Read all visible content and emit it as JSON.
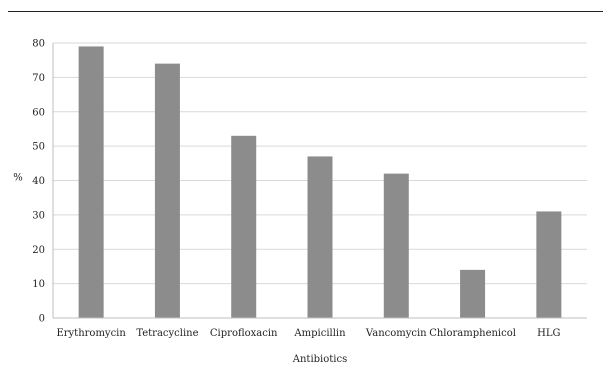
{
  "chart_data": {
    "type": "bar",
    "title": "",
    "xlabel": "Antibiotics",
    "ylabel": "%",
    "ylim": [
      0,
      80
    ],
    "yticks": [
      0,
      10,
      20,
      30,
      40,
      50,
      60,
      70,
      80
    ],
    "grid": true,
    "categories": [
      "Erythromycin",
      "Tetracycline",
      "Ciprofloxacin",
      "Ampicillin",
      "Vancomycin",
      "Chloramphenicol",
      "HLG"
    ],
    "values": [
      79,
      74,
      53,
      47,
      42,
      14,
      31
    ],
    "bar_color": "#8c8c8c",
    "grid_color": "#d9d9d9"
  }
}
